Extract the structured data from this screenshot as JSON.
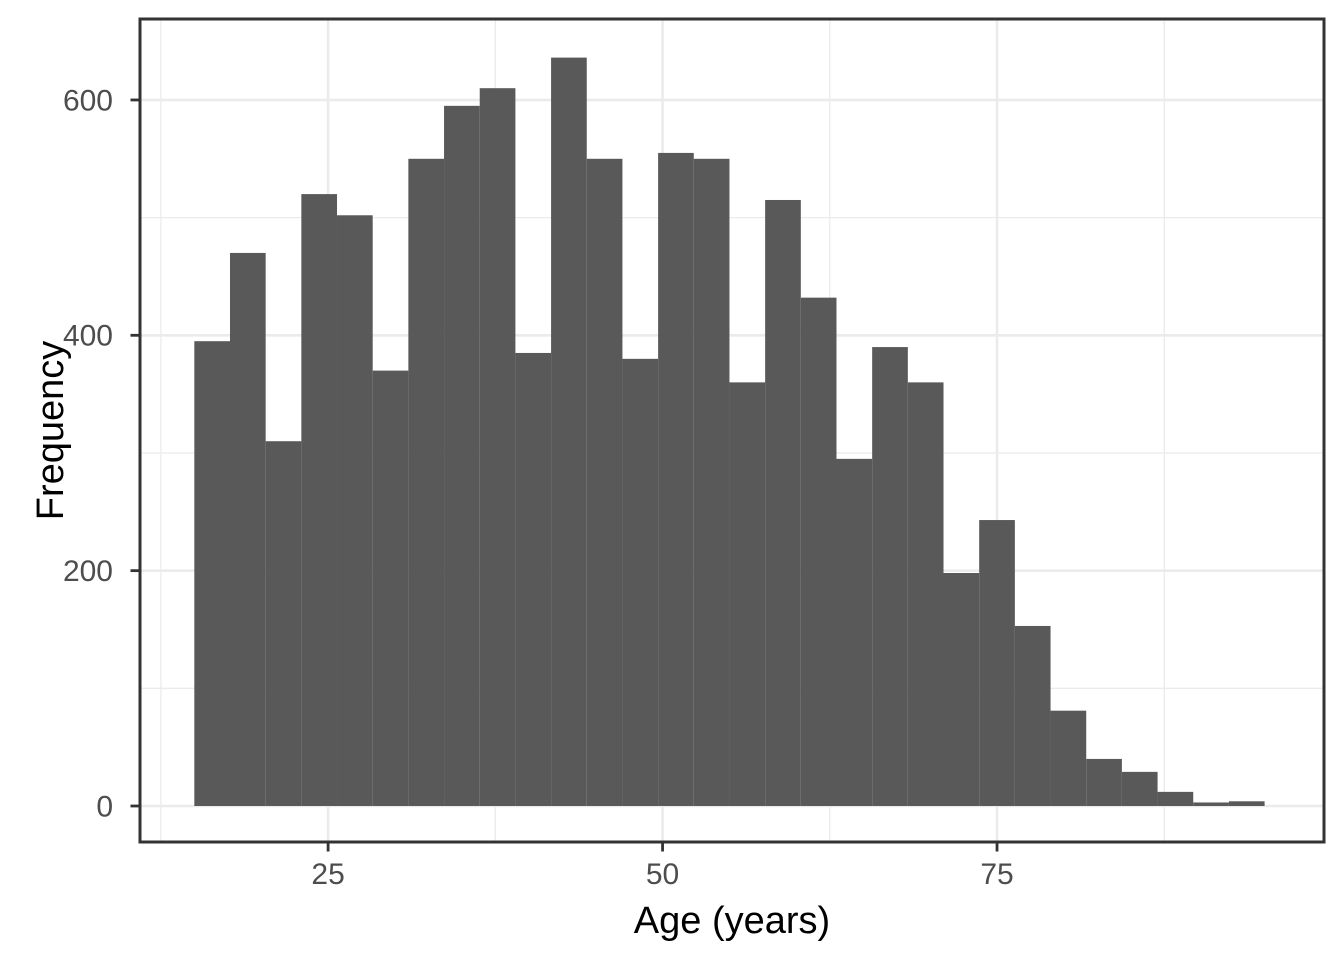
{
  "chart_data": {
    "type": "histogram",
    "title": "",
    "xlabel": "Age (years)",
    "ylabel": "Frequency",
    "bin_start": 15,
    "bin_width": 2.6666667,
    "bin_count": 30,
    "values": [
      395,
      470,
      310,
      520,
      502,
      370,
      550,
      595,
      610,
      385,
      636,
      550,
      380,
      555,
      550,
      360,
      515,
      432,
      295,
      390,
      360,
      198,
      243,
      153,
      81,
      40,
      29,
      12,
      3,
      4
    ],
    "x_ticks": [
      25,
      50,
      75
    ],
    "y_ticks": [
      0,
      200,
      400,
      600
    ],
    "x_minor_gridlines": [
      12.5,
      37.5,
      62.5,
      87.5
    ],
    "y_minor_gridlines": [
      100,
      300,
      500
    ],
    "xlim": [
      10.94,
      99.44
    ],
    "ylim": [
      -30.6,
      668.8
    ],
    "grid": true,
    "legend": false,
    "colors": {
      "bar_fill": "#595959",
      "panel_border": "#333333",
      "grid_major": "#ebebeb",
      "grid_minor": "#ebebeb",
      "tick_mark": "#333333",
      "tick_label": "#4d4d4d",
      "axis_title": "#000000",
      "background": "#ffffff"
    }
  }
}
